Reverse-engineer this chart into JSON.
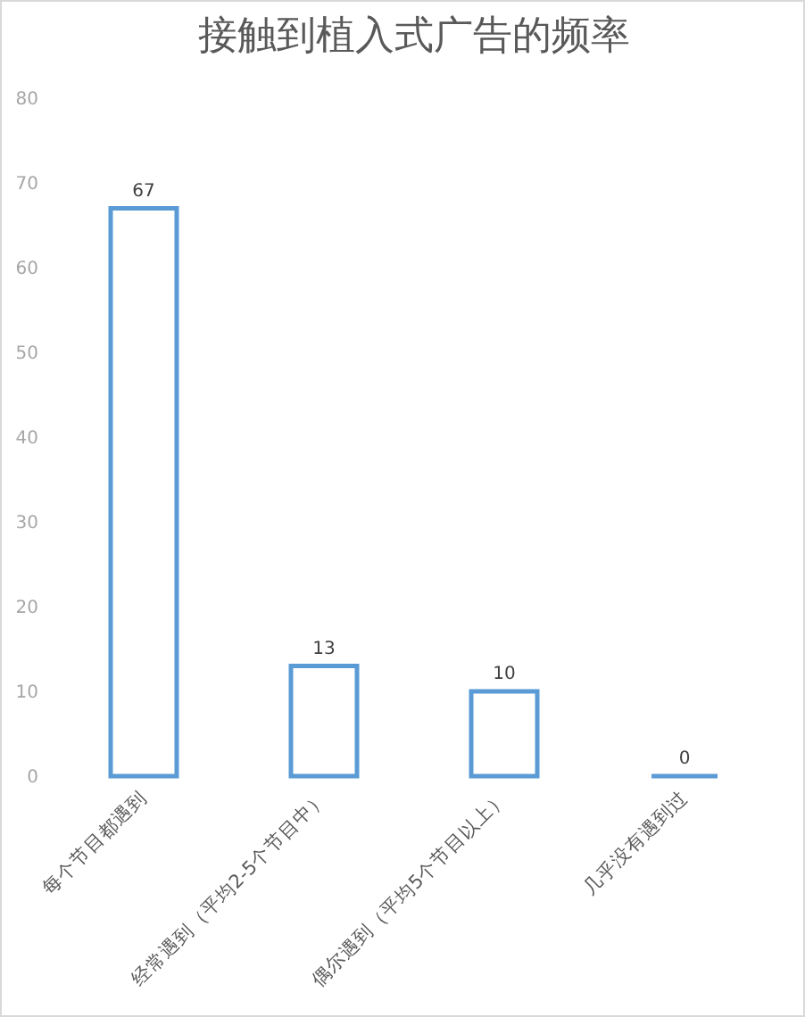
{
  "chart_data": {
    "type": "bar",
    "title": "接触到植入式广告的频率",
    "categories": [
      "每个节目都遇到",
      "经常遇到（平均2-5个节目中）",
      "偶尔遇到（平均5个节目以上）",
      "几乎没有遇到过"
    ],
    "values": [
      67,
      13,
      10,
      0
    ],
    "color": "#5b9bd5",
    "ylim": [
      0,
      80
    ],
    "yticks": [
      0,
      10,
      20,
      30,
      40,
      50,
      60,
      70,
      80
    ],
    "data_labels": true
  }
}
